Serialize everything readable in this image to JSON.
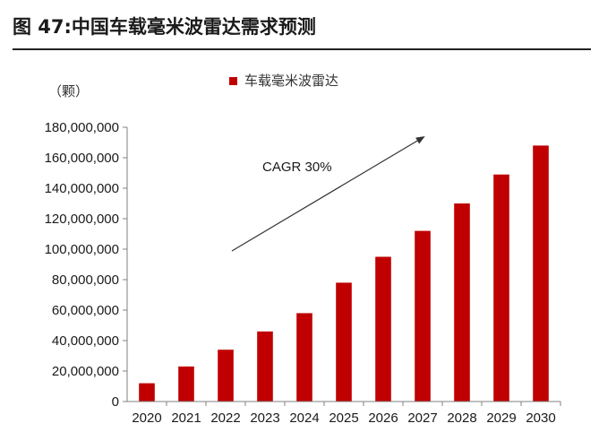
{
  "figure_title": "图 47:中国车载毫米波雷达需求预测",
  "chart_data": {
    "type": "bar",
    "title": "",
    "unit_label": "（颗）",
    "legend": "车载毫米波雷达",
    "legend_position": "top-center",
    "annotation": "CAGR 30%",
    "bar_color": "#C00000",
    "categories": [
      "2020",
      "2021",
      "2022",
      "2023",
      "2024",
      "2025",
      "2026",
      "2027",
      "2028",
      "2029",
      "2030"
    ],
    "values": [
      12000000,
      23000000,
      34000000,
      46000000,
      58000000,
      78000000,
      95000000,
      112000000,
      130000000,
      149000000,
      168000000
    ],
    "ylim": [
      0,
      180000000
    ],
    "yticks": [
      "0",
      "20,000,000",
      "40,000,000",
      "60,000,000",
      "80,000,000",
      "100,000,000",
      "120,000,000",
      "140,000,000",
      "160,000,000",
      "180,000,000"
    ],
    "grid": false
  }
}
